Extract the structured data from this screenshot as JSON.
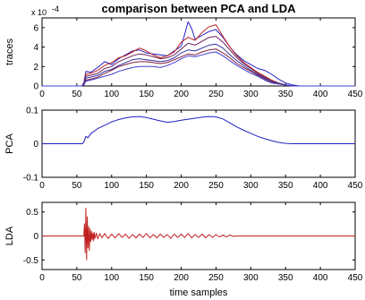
{
  "chart_data": {
    "title": "comparison between PCA and LDA",
    "xlabel": "time samples",
    "panels": [
      {
        "type": "line",
        "ylabel": "traces",
        "exponent_label": "x 10",
        "exponent_power": "-4",
        "xlim": [
          0,
          450
        ],
        "ylim": [
          0,
          7
        ],
        "xticks": [
          "0",
          "50",
          "100",
          "150",
          "200",
          "250",
          "300",
          "350",
          "400",
          "450"
        ],
        "yticks": [
          "0",
          "2",
          "4",
          "6"
        ],
        "series": [
          {
            "color": "#2020c0",
            "x": [
              0,
              50,
              57,
              60,
              63,
              70,
              80,
              90,
              100,
              110,
              120,
              130,
              140,
              150,
              160,
              170,
              180,
              190,
              200,
              205,
              210,
              215,
              220,
              230,
              240,
              250,
              260,
              270,
              280,
              290,
              300,
              310,
              320,
              330,
              340,
              350,
              360,
              370,
              380,
              400,
              450
            ],
            "y": [
              0,
              0,
              0,
              0.3,
              1.5,
              1.4,
              1.9,
              2.5,
              2.2,
              2.8,
              3.2,
              3.6,
              3.7,
              3.4,
              3.3,
              3.2,
              3.1,
              3.6,
              4.1,
              5.3,
              6.6,
              5.9,
              4.8,
              5.2,
              5.6,
              5.8,
              5.0,
              4.0,
              3.2,
              2.6,
              2.2,
              1.8,
              1.6,
              1.2,
              0.7,
              0.3,
              0.1,
              0,
              0,
              0,
              0
            ]
          },
          {
            "color": "#c02020",
            "x": [
              0,
              50,
              57,
              60,
              63,
              70,
              80,
              90,
              100,
              110,
              120,
              130,
              140,
              150,
              160,
              170,
              180,
              190,
              200,
              210,
              220,
              230,
              240,
              250,
              260,
              270,
              280,
              290,
              300,
              310,
              320,
              330,
              340,
              350,
              360,
              380,
              450
            ],
            "y": [
              0,
              0,
              0,
              0.2,
              1.2,
              1.3,
              1.6,
              2.1,
              2.4,
              2.9,
              3.1,
              3.5,
              3.9,
              3.6,
              3.2,
              2.9,
              3.1,
              3.5,
              4.5,
              5.0,
              4.7,
              5.5,
              6.1,
              6.3,
              5.1,
              4.0,
              3.1,
              2.4,
              1.9,
              1.4,
              1.0,
              0.6,
              0.3,
              0.1,
              0,
              0,
              0
            ]
          },
          {
            "color": "#6a2060",
            "x": [
              0,
              50,
              57,
              60,
              63,
              70,
              80,
              90,
              100,
              110,
              120,
              130,
              140,
              150,
              160,
              170,
              180,
              190,
              200,
              210,
              220,
              230,
              240,
              250,
              260,
              270,
              280,
              290,
              300,
              310,
              320,
              330,
              340,
              350,
              360,
              380,
              450
            ],
            "y": [
              0,
              0,
              0,
              0.2,
              1.0,
              1.1,
              1.3,
              1.8,
              2.0,
              2.5,
              2.8,
              3.1,
              3.3,
              3.2,
              3.0,
              2.8,
              2.9,
              3.2,
              3.8,
              4.4,
              4.2,
              4.6,
              5.0,
              5.1,
              4.5,
              3.7,
              2.9,
              2.3,
              1.8,
              1.3,
              0.9,
              0.5,
              0.3,
              0.1,
              0,
              0,
              0
            ]
          },
          {
            "color": "#3030a0",
            "x": [
              0,
              50,
              57,
              60,
              63,
              70,
              80,
              90,
              100,
              110,
              120,
              130,
              140,
              150,
              160,
              170,
              180,
              190,
              200,
              210,
              220,
              230,
              240,
              250,
              260,
              270,
              280,
              290,
              300,
              310,
              320,
              330,
              340,
              350,
              360,
              380,
              450
            ],
            "y": [
              0,
              0,
              0,
              0.1,
              0.8,
              0.9,
              1.1,
              1.5,
              1.7,
              2.1,
              2.4,
              2.7,
              2.8,
              2.7,
              2.6,
              2.5,
              2.6,
              2.9,
              3.4,
              3.7,
              3.6,
              3.9,
              4.2,
              4.3,
              3.9,
              3.2,
              2.6,
              2.1,
              1.6,
              1.2,
              0.8,
              0.5,
              0.2,
              0.1,
              0,
              0,
              0
            ]
          },
          {
            "color": "#802040",
            "x": [
              0,
              50,
              57,
              60,
              63,
              70,
              80,
              90,
              100,
              110,
              120,
              130,
              140,
              150,
              160,
              170,
              180,
              190,
              200,
              210,
              220,
              230,
              240,
              250,
              260,
              270,
              280,
              290,
              300,
              310,
              320,
              330,
              340,
              350,
              360,
              380,
              450
            ],
            "y": [
              0,
              0,
              0,
              0.1,
              0.6,
              0.7,
              0.9,
              1.3,
              1.6,
              2.0,
              2.2,
              2.4,
              2.5,
              2.5,
              2.4,
              2.3,
              2.4,
              2.7,
              3.0,
              3.3,
              3.2,
              3.5,
              3.7,
              3.8,
              3.4,
              2.9,
              2.3,
              1.9,
              1.5,
              1.1,
              0.7,
              0.4,
              0.2,
              0.1,
              0,
              0,
              0
            ]
          },
          {
            "color": "#4040d0",
            "x": [
              0,
              50,
              57,
              60,
              63,
              70,
              80,
              90,
              100,
              110,
              120,
              130,
              140,
              150,
              160,
              170,
              180,
              190,
              200,
              210,
              220,
              230,
              240,
              250,
              260,
              270,
              280,
              290,
              300,
              310,
              320,
              330,
              340,
              350,
              360,
              380,
              450
            ],
            "y": [
              0,
              0,
              0,
              0.1,
              0.5,
              0.6,
              0.8,
              1.0,
              1.2,
              1.5,
              1.7,
              1.9,
              2.0,
              2.0,
              2.0,
              1.9,
              2.1,
              2.4,
              2.8,
              3.1,
              3.0,
              3.2,
              3.4,
              3.5,
              3.1,
              2.6,
              2.1,
              1.7,
              1.3,
              1.0,
              0.6,
              0.3,
              0.2,
              0.1,
              0,
              0,
              0
            ]
          }
        ]
      },
      {
        "type": "line",
        "ylabel": "PCA",
        "xlim": [
          0,
          450
        ],
        "ylim": [
          -0.1,
          0.1
        ],
        "xticks": [
          "0",
          "50",
          "100",
          "150",
          "200",
          "250",
          "300",
          "350",
          "400",
          "450"
        ],
        "yticks": [
          "-0.1",
          "0",
          "0.1"
        ],
        "series": [
          {
            "color": "#2020c0",
            "x": [
              0,
              58,
              60,
              63,
              66,
              70,
              80,
              90,
              100,
              110,
              120,
              130,
              140,
              150,
              160,
              170,
              180,
              190,
              200,
              210,
              220,
              230,
              240,
              250,
              260,
              270,
              280,
              290,
              300,
              310,
              320,
              330,
              340,
              350,
              360,
              380,
              400,
              450
            ],
            "y": [
              0,
              0,
              0.005,
              0.022,
              0.018,
              0.03,
              0.045,
              0.055,
              0.065,
              0.072,
              0.077,
              0.08,
              0.081,
              0.078,
              0.073,
              0.068,
              0.064,
              0.066,
              0.07,
              0.073,
              0.076,
              0.079,
              0.081,
              0.08,
              0.074,
              0.062,
              0.05,
              0.04,
              0.031,
              0.022,
              0.015,
              0.009,
              0.004,
              0.001,
              0,
              0,
              0,
              0
            ]
          }
        ]
      },
      {
        "type": "line",
        "ylabel": "LDA",
        "xlim": [
          0,
          450
        ],
        "ylim": [
          -0.7,
          0.7
        ],
        "xticks": [
          "0",
          "50",
          "100",
          "150",
          "200",
          "250",
          "300",
          "350",
          "400",
          "450"
        ],
        "yticks": [
          "-0.5",
          "0",
          "0.5"
        ],
        "series": [
          {
            "color": "#c02020",
            "x": [
              0,
              60,
              61,
              62,
              63,
              64,
              65,
              66,
              67,
              68,
              69,
              70,
              71,
              72,
              73,
              74,
              75,
              76,
              78,
              80,
              83,
              86,
              90,
              95,
              100,
              105,
              110,
              115,
              120,
              125,
              130,
              135,
              140,
              145,
              150,
              155,
              160,
              165,
              170,
              175,
              180,
              185,
              190,
              195,
              200,
              205,
              210,
              215,
              220,
              225,
              230,
              235,
              240,
              245,
              250,
              255,
              260,
              265,
              270,
              275,
              280,
              450
            ],
            "y": [
              0,
              0,
              0.25,
              -0.35,
              0.58,
              -0.5,
              0.4,
              -0.25,
              0.2,
              -0.3,
              0.15,
              -0.12,
              0.1,
              -0.08,
              0.06,
              -0.1,
              0.08,
              -0.05,
              0.06,
              -0.06,
              0.05,
              -0.04,
              0.05,
              -0.05,
              0.04,
              -0.04,
              0.05,
              -0.03,
              0.04,
              -0.05,
              0.03,
              -0.04,
              0.04,
              -0.03,
              0.05,
              -0.04,
              0.03,
              -0.04,
              0.04,
              -0.03,
              0.03,
              -0.05,
              0.04,
              -0.03,
              0.04,
              -0.03,
              0.05,
              -0.04,
              0.03,
              -0.03,
              0.04,
              -0.04,
              0.03,
              -0.03,
              0.03,
              -0.02,
              0.02,
              -0.02,
              0.02,
              -0.01,
              0,
              0
            ]
          }
        ]
      }
    ]
  }
}
